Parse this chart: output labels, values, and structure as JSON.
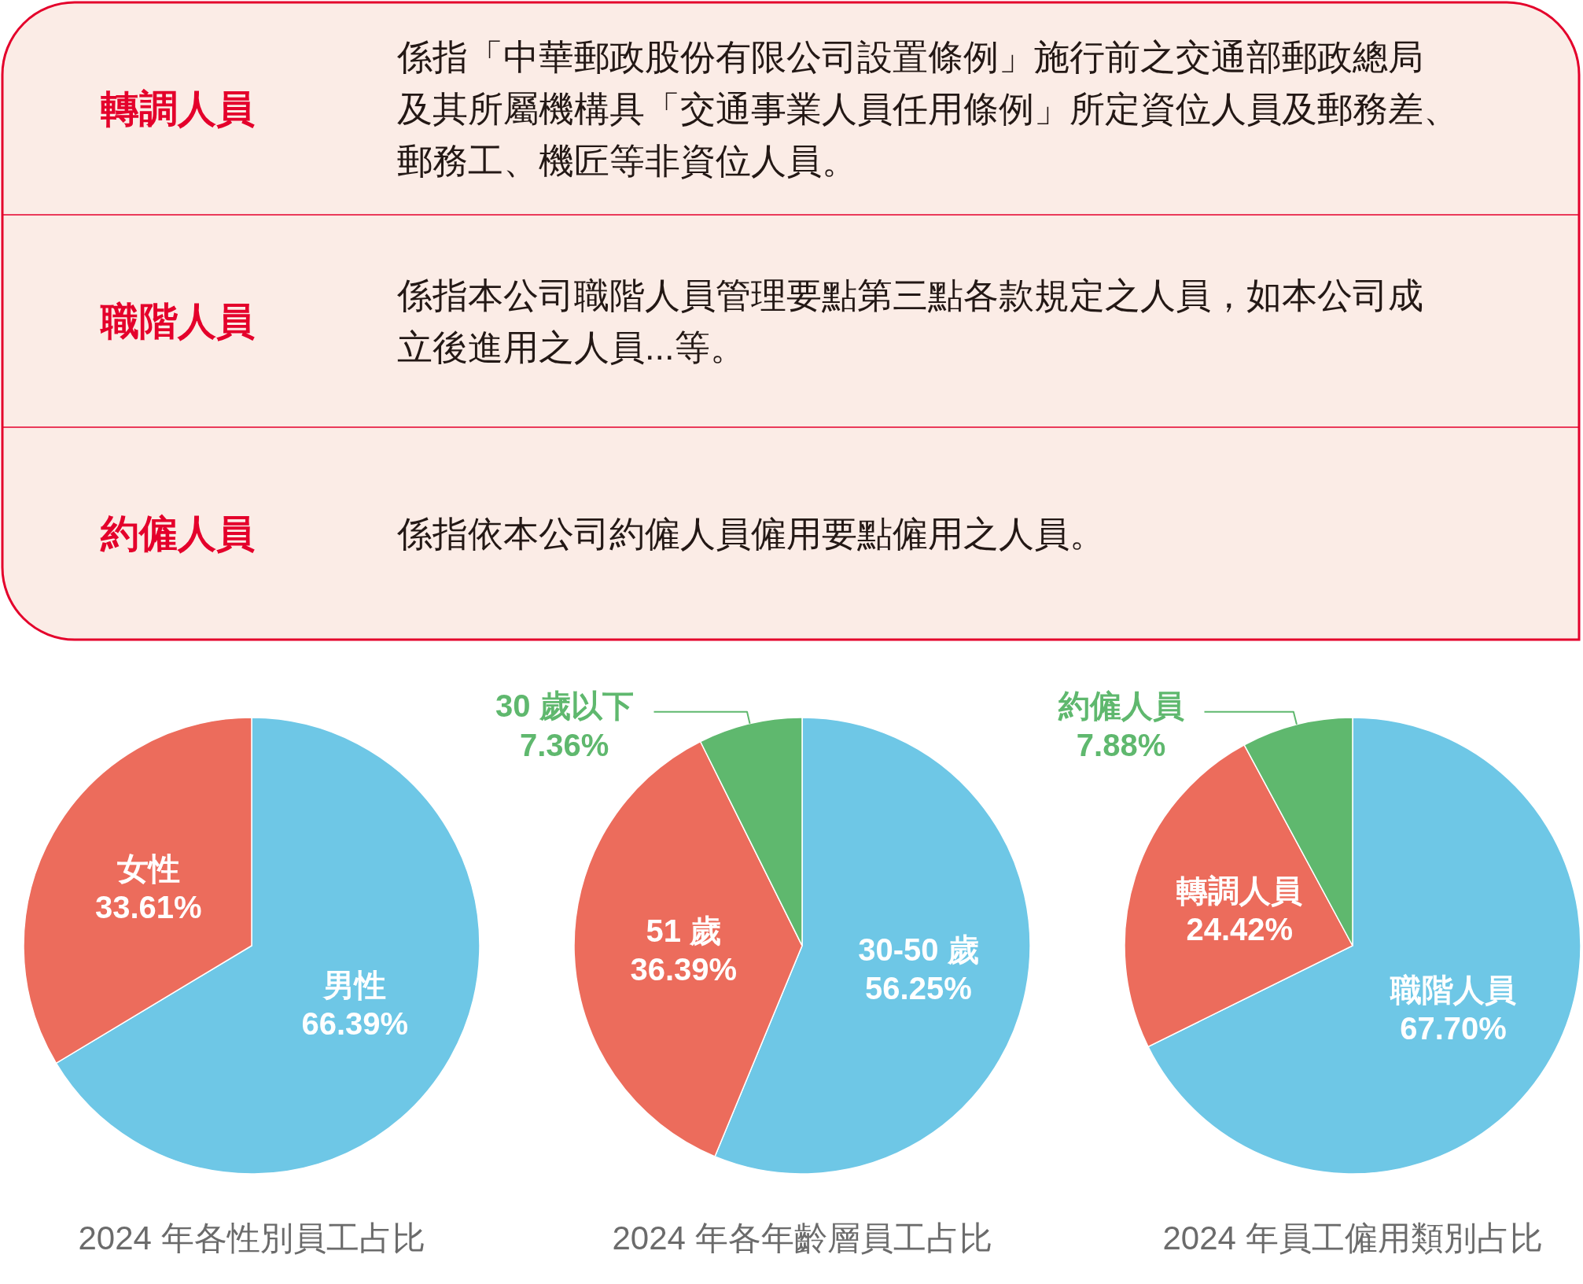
{
  "chart_data": [
    {
      "type": "other",
      "annotations": [
        "轉調人員",
        "係指「中華郵政股份有限公司設置條例」施行前之交通部郵政總局及其所屬機構具「交通事業人員任用條例」所定資位人員及郵務差、郵務工、機匠等非資位人員。",
        "職階人員",
        "係指本公司職階人員管理要點第三點各款規定之人員，如本公司成立後進用之人員...等。",
        "約僱人員",
        "係指依本公司約僱人員僱用要點僱用之人員。"
      ]
    },
    {
      "type": "pie",
      "title": "2024 年各性別員工占比",
      "categories": [
        "男性",
        "女性"
      ],
      "values": [
        66.39,
        33.61
      ],
      "colors": [
        "#6ec7e6",
        "#ec6c5c"
      ],
      "value_labels": [
        "66.39%",
        "33.61%"
      ]
    },
    {
      "type": "pie",
      "title": "2024 年各年齡層員工占比",
      "categories": [
        "30-50 歲",
        "51 歲",
        "30 歲以下"
      ],
      "values": [
        56.25,
        36.39,
        7.36
      ],
      "colors": [
        "#6ec7e6",
        "#ec6c5c",
        "#5fb86e"
      ],
      "value_labels": [
        "56.25%",
        "36.39%",
        "7.36%"
      ]
    },
    {
      "type": "pie",
      "title": "2024 年員工僱用類別占比",
      "categories": [
        "職階人員",
        "轉調人員",
        "約僱人員"
      ],
      "values": [
        67.7,
        24.42,
        7.88
      ],
      "colors": [
        "#6ec7e6",
        "#ec6c5c",
        "#5fb86e"
      ],
      "value_labels": [
        "67.70%",
        "24.42%",
        "7.88%"
      ]
    }
  ]
}
